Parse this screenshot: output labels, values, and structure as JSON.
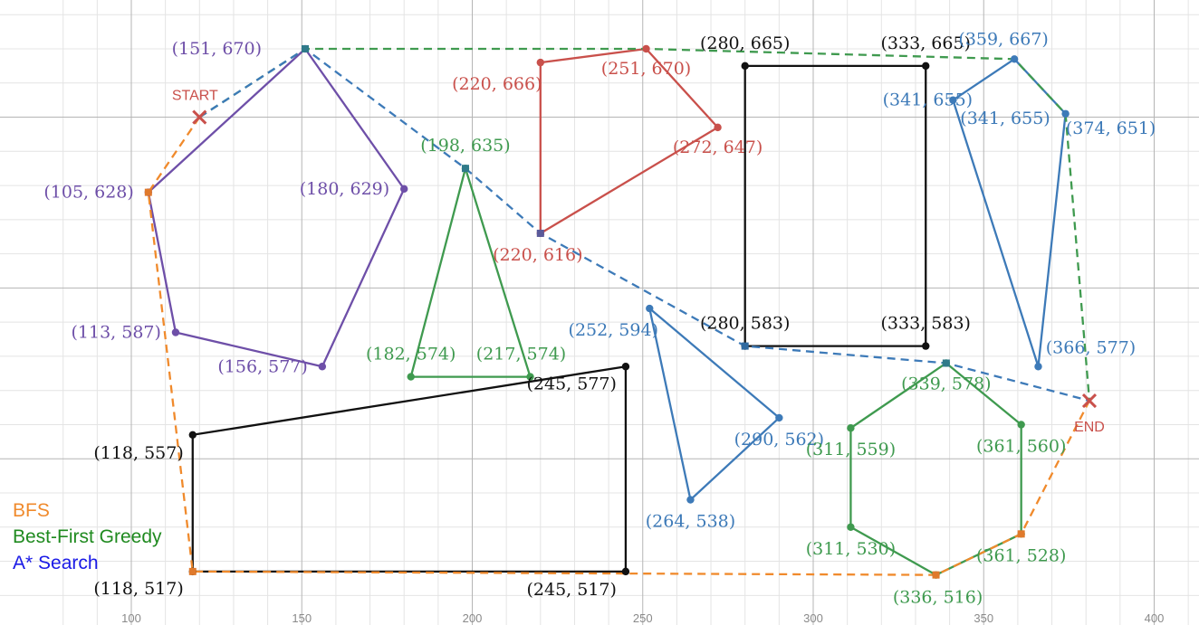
{
  "chart_data": {
    "type": "path-planning-map",
    "xlim": [
      80,
      413
    ],
    "ylim": [
      508,
      683
    ],
    "x_ticks": [
      "100",
      "150",
      "200",
      "250",
      "300",
      "350",
      "400"
    ],
    "grid": true,
    "start": {
      "label": "START",
      "x": 120,
      "y": 650,
      "color": "#c9504b"
    },
    "end": {
      "label": "END",
      "x": 381,
      "y": 567,
      "color": "#c9504b"
    },
    "obstacles": [
      {
        "name": "pentagon",
        "color": "#6e4fa8",
        "vertices": [
          [
            151,
            670
          ],
          [
            180,
            629
          ],
          [
            156,
            577
          ],
          [
            113,
            587
          ],
          [
            105,
            628
          ]
        ],
        "labels": [
          "(151, 670)",
          "(180, 629)",
          "(156, 577)",
          "(113, 587)",
          "(105, 628)"
        ]
      },
      {
        "name": "triangle-green",
        "color": "#3f9a4f",
        "vertices": [
          [
            198,
            635
          ],
          [
            217,
            574
          ],
          [
            182,
            574
          ]
        ],
        "labels": [
          "(198, 635)",
          "(217, 574)",
          "(182, 574)"
        ]
      },
      {
        "name": "quad-red",
        "color": "#c9504b",
        "vertices": [
          [
            220,
            666
          ],
          [
            251,
            670
          ],
          [
            272,
            647
          ],
          [
            220,
            616
          ]
        ],
        "labels": [
          "(220, 666)",
          "(251, 670)",
          "(272, 647)",
          "(220, 616)"
        ]
      },
      {
        "name": "rectangle",
        "color": "#111111",
        "vertices": [
          [
            280,
            665
          ],
          [
            333,
            665
          ],
          [
            333,
            583
          ],
          [
            280,
            583
          ]
        ],
        "labels": [
          "(280, 665)",
          "(333, 665)",
          "(333, 583)",
          "(280, 583)"
        ]
      },
      {
        "name": "quad-black",
        "color": "#111111",
        "vertices": [
          [
            118,
            557
          ],
          [
            245,
            577
          ],
          [
            245,
            517
          ],
          [
            118,
            517
          ]
        ],
        "labels": [
          "(118, 557)",
          "(245, 577)",
          "(245, 517)",
          "(118, 517)"
        ]
      },
      {
        "name": "triangle-blue",
        "color": "#3d7ab8",
        "vertices": [
          [
            252,
            594
          ],
          [
            290,
            562
          ],
          [
            264,
            538
          ]
        ],
        "labels": [
          "(252, 594)",
          "(290, 562)",
          "(264, 538)"
        ]
      },
      {
        "name": "quad-blue",
        "color": "#3d7ab8",
        "vertices": [
          [
            341,
            655
          ],
          [
            359,
            667
          ],
          [
            374,
            651
          ],
          [
            366,
            577
          ]
        ],
        "labels": [
          "(341, 655)",
          "(359, 667)",
          "(374, 651)",
          "(366, 577)"
        ]
      },
      {
        "name": "hexagon",
        "color": "#3f9a4f",
        "vertices": [
          [
            339,
            578
          ],
          [
            361,
            560
          ],
          [
            361,
            528
          ],
          [
            336,
            516
          ],
          [
            311,
            530
          ],
          [
            311,
            559
          ]
        ],
        "labels": [
          "(339, 578)",
          "(361, 560)",
          "(361, 528)",
          "(336, 516)",
          "(311, 530)",
          "(311, 559)"
        ]
      }
    ],
    "extra_labels": [
      {
        "text": "(341, 655)",
        "color": "#3d7ab8"
      }
    ],
    "paths": [
      {
        "name": "BFS",
        "color": "#f08a2c",
        "points": [
          [
            120,
            650
          ],
          [
            105,
            628
          ],
          [
            118,
            517
          ],
          [
            336,
            516
          ],
          [
            361,
            528
          ],
          [
            381,
            567
          ]
        ]
      },
      {
        "name": "Best-First Greedy",
        "color": "#3f9a4f",
        "points": [
          [
            120,
            650
          ],
          [
            151,
            670
          ],
          [
            251,
            670
          ],
          [
            359,
            667
          ],
          [
            374,
            651
          ],
          [
            381,
            567
          ]
        ]
      },
      {
        "name": "A* Search",
        "color": "#3d7ab8",
        "points": [
          [
            120,
            650
          ],
          [
            151,
            670
          ],
          [
            198,
            635
          ],
          [
            220,
            616
          ],
          [
            280,
            583
          ],
          [
            339,
            578
          ],
          [
            381,
            567
          ]
        ]
      }
    ],
    "legend": [
      {
        "label": "BFS",
        "color": "#f08a2c"
      },
      {
        "label": "Best-First Greedy",
        "color": "#1f8a1f"
      },
      {
        "label": "A* Search",
        "color": "#1a1ae6"
      }
    ]
  }
}
